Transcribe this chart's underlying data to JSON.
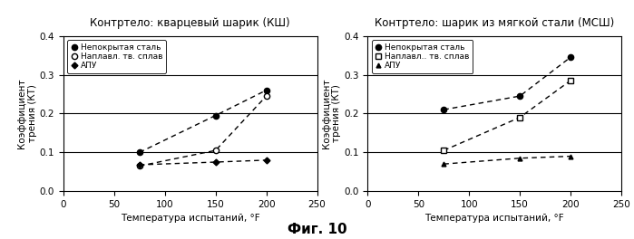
{
  "chart1": {
    "title": "Контртело: кварцевый шарик (КШ)",
    "series": {
      "uncovered_steel": {
        "label": "Непокрытая сталь",
        "x": [
          75,
          150,
          200
        ],
        "y": [
          0.1,
          0.195,
          0.26
        ],
        "marker": "o",
        "marker_filled": true,
        "linestyle": "--"
      },
      "hardfacing": {
        "label": "Наплавл. тв. сплав",
        "x": [
          75,
          150,
          200
        ],
        "y": [
          0.065,
          0.105,
          0.245
        ],
        "marker": "o",
        "marker_filled": false,
        "linestyle": "--"
      },
      "apu": {
        "label": "АПУ",
        "x": [
          75,
          150,
          200
        ],
        "y": [
          0.068,
          0.075,
          0.08
        ],
        "marker": "D",
        "marker_filled": true,
        "linestyle": "--"
      }
    },
    "hlines": [
      0.1,
      0.2,
      0.3
    ],
    "xlim": [
      0,
      250
    ],
    "ylim": [
      0,
      0.4
    ],
    "xlabel": "Температура испытаний, °F",
    "ylabel": "Коэффициент\nтрения (КТ)",
    "xticks": [
      0,
      50,
      100,
      150,
      200,
      250
    ],
    "yticks": [
      0,
      0.1,
      0.2,
      0.3,
      0.4
    ]
  },
  "chart2": {
    "title": "Контртело: шарик из мягкой стали (МСШ)",
    "series": {
      "uncovered_steel": {
        "label": "Непокрытая сталь",
        "x": [
          75,
          150,
          200
        ],
        "y": [
          0.21,
          0.245,
          0.345
        ],
        "marker": "o",
        "marker_filled": true,
        "linestyle": "--"
      },
      "hardfacing": {
        "label": "Наплавл.. тв. сплав",
        "x": [
          75,
          150,
          200
        ],
        "y": [
          0.105,
          0.19,
          0.285
        ],
        "marker": "s",
        "marker_filled": false,
        "linestyle": "--"
      },
      "apu": {
        "label": "АПУ",
        "x": [
          75,
          150,
          200
        ],
        "y": [
          0.07,
          0.085,
          0.09
        ],
        "marker": "^",
        "marker_filled": true,
        "linestyle": "--"
      }
    },
    "hlines": [
      0.1,
      0.2,
      0.3
    ],
    "xlim": [
      0,
      250
    ],
    "ylim": [
      0,
      0.4
    ],
    "xlabel": "Температура испытаний, °F",
    "ylabel": "Коэффициент\nтрения (КТ)",
    "xticks": [
      0,
      50,
      100,
      150,
      200,
      250
    ],
    "yticks": [
      0,
      0.1,
      0.2,
      0.3,
      0.4
    ]
  },
  "fig_label": "Фиг. 10",
  "background_color": "#ffffff",
  "title_fontsize": 8.5,
  "axis_label_fontsize": 7.5,
  "tick_fontsize": 7.5,
  "legend_fontsize": 6.5
}
